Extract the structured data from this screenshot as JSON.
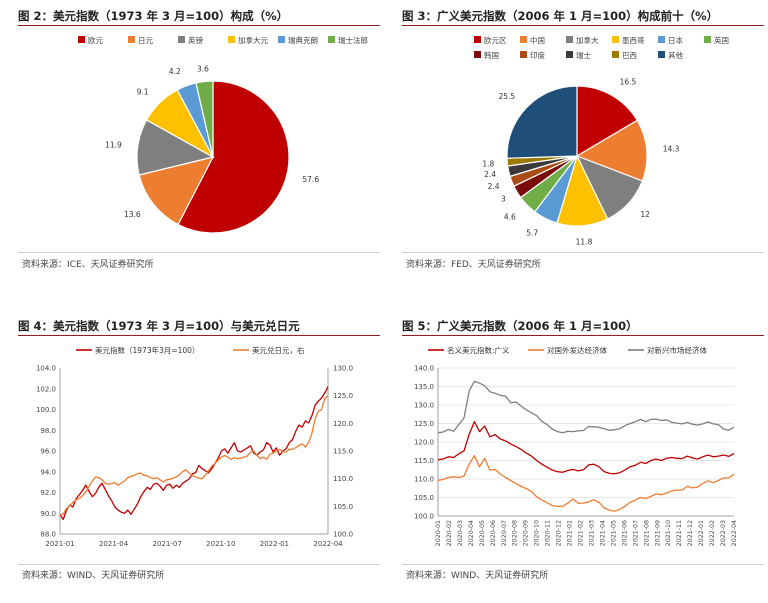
{
  "chart_data": [
    {
      "id": "fig2",
      "type": "pie",
      "title": "图 2：美元指数（1973 年 3 月=100）构成（%）",
      "labels": [
        "欧元",
        "日元",
        "英镑",
        "加拿大元",
        "瑞典克朗",
        "瑞士法郎"
      ],
      "values": [
        57.6,
        13.6,
        11.9,
        9.1,
        4.2,
        3.6
      ],
      "colors": [
        "#c00000",
        "#ed7d31",
        "#7f7f7f",
        "#ffc000",
        "#5b9bd5",
        "#70ad47"
      ],
      "legend": "top",
      "source": "资料来源：ICE、天风证券研究所"
    },
    {
      "id": "fig3",
      "type": "pie",
      "title": "图 3：广义美元指数（2006 年 1 月=100）构成前十（%）",
      "labels": [
        "欧元区",
        "中国",
        "加拿大",
        "墨西哥",
        "日本",
        "英国",
        "韩国",
        "印度",
        "瑞士",
        "巴西",
        "其他"
      ],
      "values": [
        16.5,
        14.3,
        12,
        11.8,
        5.7,
        4.6,
        3,
        2.4,
        2.4,
        1.8,
        25.5
      ],
      "colors": [
        "#c00000",
        "#ed7d31",
        "#7f7f7f",
        "#ffc000",
        "#5b9bd5",
        "#70ad47",
        "#7b0b0b",
        "#a84b14",
        "#3a3a3a",
        "#9c7a00",
        "#1f4e79"
      ],
      "legend": "top",
      "source": "资料来源：FED、天风证券研究所"
    },
    {
      "id": "fig4",
      "type": "line",
      "title": "图 4：美元指数（1973 年 3 月=100）与美元兑日元",
      "series": [
        {
          "name": "美元指数（1973年3月=100）",
          "color": "#c00000",
          "axis": "left",
          "values": [
            89.9,
            89.4,
            90.3,
            90.8,
            90.6,
            91.4,
            91.8,
            92.2,
            92.7,
            92.1,
            91.6,
            91.9,
            92.5,
            92.9,
            92.3,
            91.7,
            91.2,
            90.6,
            90.3,
            90.1,
            90.0,
            90.3,
            89.9,
            90.4,
            90.9,
            91.6,
            92.1,
            92.5,
            92.3,
            92.8,
            92.9,
            92.6,
            92.2,
            92.7,
            92.8,
            92.4,
            92.7,
            92.5,
            92.9,
            93.1,
            93.3,
            93.8,
            93.9,
            94.6,
            94.3,
            94.1,
            93.9,
            94.3,
            94.8,
            95.3,
            96.0,
            96.2,
            95.8,
            96.3,
            96.8,
            96.0,
            95.9,
            96.1,
            96.3,
            96.5,
            95.8,
            95.6,
            95.9,
            96.1,
            96.8,
            96.6,
            95.9,
            96.3,
            95.6,
            96.0,
            96.2,
            96.8,
            97.1,
            97.9,
            98.5,
            98.3,
            98.9,
            98.7,
            99.4,
            100.4,
            100.8,
            101.1,
            101.6,
            102.2
          ]
        },
        {
          "name": "美元兑日元，右",
          "color": "#ed7d31",
          "axis": "right",
          "values": [
            103.3,
            103.6,
            104.6,
            105.1,
            105.7,
            106.2,
            106.4,
            106.9,
            107.6,
            108.6,
            109.6,
            110.3,
            110.2,
            109.8,
            109.2,
            109.0,
            109.1,
            109.3,
            108.8,
            109.2,
            109.6,
            110.2,
            110.4,
            110.6,
            110.9,
            111.0,
            110.6,
            110.5,
            110.2,
            110.0,
            110.2,
            109.8,
            109.4,
            109.8,
            109.9,
            110.1,
            110.3,
            110.7,
            111.3,
            111.6,
            111.0,
            110.6,
            110.3,
            110.1,
            110.0,
            110.6,
            111.4,
            112.3,
            112.7,
            113.4,
            113.9,
            114.2,
            113.9,
            113.5,
            113.8,
            113.6,
            113.7,
            113.9,
            114.1,
            114.8,
            115.0,
            114.2,
            113.6,
            113.9,
            113.5,
            114.4,
            114.6,
            115.0,
            115.3,
            114.9,
            114.8,
            115.3,
            115.3,
            115.6,
            116.0,
            116.3,
            115.7,
            116.5,
            118.2,
            120.8,
            122.2,
            122.5,
            124.5,
            125.0
          ]
        }
      ],
      "x_labels": [
        "2021-01",
        "2021-04",
        "2021-07",
        "2021-10",
        "2022-01",
        "2022-04"
      ],
      "ylim_left": [
        88.0,
        104.0
      ],
      "yticks_left": [
        88.0,
        90.0,
        92.0,
        94.0,
        96.0,
        98.0,
        100.0,
        102.0,
        104.0
      ],
      "ylim_right": [
        100.0,
        130.0
      ],
      "yticks_right": [
        100.0,
        105.0,
        110.0,
        115.0,
        120.0,
        125.0,
        130.0
      ],
      "legend": "top",
      "source": "资料来源：WIND、天风证券研究所"
    },
    {
      "id": "fig5",
      "type": "line",
      "title": "图 5：广义美元指数（2006 年 1 月=100）",
      "series": [
        {
          "name": "名义美元指数:广义",
          "color": "#c00000",
          "values": [
            115.2,
            115.4,
            116.0,
            115.8,
            116.8,
            117.6,
            122.1,
            125.5,
            122.8,
            124.3,
            121.4,
            122.0,
            120.8,
            120.3,
            119.5,
            118.8,
            118.0,
            117.0,
            116.2,
            115.0,
            114.0,
            113.2,
            112.4,
            112.0,
            111.8,
            112.3,
            112.6,
            112.2,
            112.5,
            113.8,
            114.0,
            113.3,
            112.0,
            111.5,
            111.4,
            111.7,
            112.4,
            113.3,
            113.7,
            114.5,
            114.2,
            115.0,
            115.4,
            115.0,
            115.6,
            115.8,
            115.6,
            115.5,
            116.2,
            115.7,
            115.4,
            116.0,
            116.5,
            116.0,
            116.2,
            116.5,
            116.1,
            116.9
          ]
        },
        {
          "name": "对国外发达经济体",
          "color": "#ed7d31",
          "values": [
            109.6,
            109.9,
            110.4,
            110.6,
            110.4,
            110.8,
            114.0,
            116.3,
            113.3,
            115.6,
            112.4,
            112.6,
            111.3,
            110.4,
            109.6,
            108.8,
            108.0,
            107.4,
            106.6,
            105.2,
            104.3,
            103.6,
            102.8,
            102.6,
            102.6,
            103.5,
            104.6,
            103.4,
            103.5,
            103.8,
            104.4,
            103.7,
            102.2,
            101.6,
            101.3,
            101.8,
            102.6,
            103.7,
            104.3,
            105.0,
            104.7,
            105.3,
            106.0,
            105.7,
            106.2,
            106.8,
            107.0,
            107.0,
            108.0,
            107.6,
            107.8,
            108.8,
            109.5,
            109.0,
            109.6,
            110.3,
            110.3,
            111.3
          ]
        },
        {
          "name": "对新兴市场经济体",
          "color": "#7f7f7f",
          "values": [
            122.5,
            122.7,
            123.4,
            122.9,
            124.7,
            126.5,
            133.8,
            136.4,
            135.9,
            135.2,
            133.6,
            133.2,
            132.6,
            132.4,
            130.6,
            130.8,
            129.7,
            128.7,
            127.9,
            127.1,
            125.6,
            124.7,
            123.5,
            122.8,
            122.5,
            122.9,
            122.8,
            123.0,
            123.1,
            124.2,
            124.1,
            124.0,
            123.6,
            123.2,
            123.3,
            123.6,
            124.4,
            125.0,
            125.5,
            126.1,
            125.5,
            126.1,
            126.2,
            125.8,
            126.0,
            125.3,
            125.1,
            124.9,
            125.3,
            124.8,
            124.6,
            124.9,
            125.4,
            124.9,
            124.7,
            123.5,
            123.2,
            124.0
          ]
        }
      ],
      "x_labels": [
        "2020-01",
        "2020-02",
        "2020-03",
        "2020-04",
        "2020-05",
        "2020-06",
        "2020-07",
        "2020-08",
        "2020-09",
        "2020-10",
        "2020-11",
        "2020-12",
        "2021-01",
        "2021-02",
        "2021-03",
        "2021-04",
        "2021-05",
        "2021-06",
        "2021-07",
        "2021-08",
        "2021-09",
        "2021-10",
        "2021-11",
        "2021-12",
        "2022-01",
        "2022-02",
        "2022-03",
        "2022-04"
      ],
      "ylim": [
        100.0,
        140.0
      ],
      "yticks": [
        100.0,
        105.0,
        110.0,
        115.0,
        120.0,
        125.0,
        130.0,
        135.0,
        140.0
      ],
      "legend": "top",
      "source": "资料来源：WIND、天风证券研究所"
    }
  ]
}
